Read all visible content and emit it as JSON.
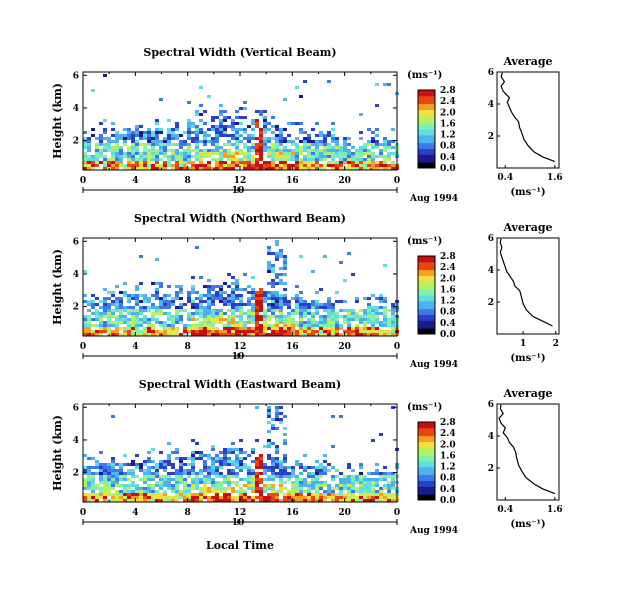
{
  "figure": {
    "date_label": "Aug 1994",
    "common_xlabel": "Local Time",
    "colorbar_unit": "(ms⁻¹)",
    "avg_title": "Average",
    "avg_xlabel": "(ms⁻¹)"
  },
  "colors": {
    "colormap": [
      "#000000",
      "#1a1a8f",
      "#2b3fc8",
      "#3d7ae8",
      "#4fb1f0",
      "#5fdde0",
      "#7ef0b0",
      "#b8f060",
      "#f0e040",
      "#f5a020",
      "#e84810",
      "#c81010"
    ]
  },
  "chart_data": [
    {
      "type": "heatmap",
      "title": "Spectral Width (Vertical Beam)",
      "xlabel": "",
      "ylabel": "Height (km)",
      "x_ticks": [
        "0",
        "4",
        "8",
        "12",
        "16",
        "20",
        "0"
      ],
      "x_range": [
        0,
        24
      ],
      "y_ticks": [
        "2",
        "4",
        "6"
      ],
      "y_range": [
        0.2,
        6.2
      ],
      "date_tick": "10",
      "colorbar": {
        "unit": "(ms⁻¹)",
        "ticks": [
          "0.0",
          "0.4",
          "0.8",
          "1.2",
          "1.6",
          "2.0",
          "2.4",
          "2.8"
        ],
        "range": [
          0,
          2.8
        ]
      },
      "profile": {
        "title": "Average",
        "xlabel": "(ms⁻¹)",
        "x_ticks": [
          "0.4",
          "1.6"
        ],
        "x_range": [
          0.2,
          1.7
        ],
        "y_ticks": [
          "2",
          "4",
          "6"
        ],
        "y_range": [
          0,
          6
        ],
        "points": [
          [
            1.6,
            0.4
          ],
          [
            1.3,
            0.7
          ],
          [
            1.1,
            1.0
          ],
          [
            0.95,
            1.4
          ],
          [
            0.85,
            1.8
          ],
          [
            0.8,
            2.2
          ],
          [
            0.75,
            2.5
          ],
          [
            0.72,
            2.9
          ],
          [
            0.62,
            3.2
          ],
          [
            0.55,
            3.5
          ],
          [
            0.5,
            3.8
          ],
          [
            0.45,
            4.1
          ],
          [
            0.5,
            4.4
          ],
          [
            0.42,
            4.6
          ],
          [
            0.35,
            4.8
          ],
          [
            0.3,
            5.1
          ],
          [
            0.38,
            5.4
          ],
          [
            0.3,
            5.7
          ],
          [
            0.33,
            5.95
          ]
        ]
      }
    },
    {
      "type": "heatmap",
      "title": "Spectral Width (Northward Beam)",
      "xlabel": "",
      "ylabel": "Height (km)",
      "x_ticks": [
        "0",
        "4",
        "8",
        "12",
        "16",
        "20",
        "0"
      ],
      "x_range": [
        0,
        24
      ],
      "y_ticks": [
        "2",
        "4",
        "6"
      ],
      "y_range": [
        0.2,
        6.2
      ],
      "date_tick": "10",
      "colorbar": {
        "unit": "(ms⁻¹)",
        "ticks": [
          "0.0",
          "0.4",
          "0.8",
          "1.2",
          "1.6",
          "2.0",
          "2.4",
          "2.8"
        ],
        "range": [
          0,
          2.8
        ]
      },
      "profile": {
        "title": "Average",
        "xlabel": "(ms⁻¹)",
        "x_ticks": [
          "1",
          "2"
        ],
        "x_range": [
          0.2,
          2.1
        ],
        "y_ticks": [
          "2",
          "4",
          "6"
        ],
        "y_range": [
          0,
          6
        ],
        "points": [
          [
            1.9,
            0.5
          ],
          [
            1.6,
            0.8
          ],
          [
            1.3,
            1.1
          ],
          [
            1.1,
            1.5
          ],
          [
            1.0,
            1.9
          ],
          [
            0.95,
            2.3
          ],
          [
            0.9,
            2.7
          ],
          [
            0.75,
            3.0
          ],
          [
            0.7,
            3.3
          ],
          [
            0.6,
            3.6
          ],
          [
            0.5,
            3.9
          ],
          [
            0.45,
            4.2
          ],
          [
            0.4,
            4.5
          ],
          [
            0.35,
            4.8
          ],
          [
            0.3,
            5.1
          ],
          [
            0.35,
            5.4
          ],
          [
            0.3,
            5.7
          ],
          [
            0.32,
            5.95
          ]
        ]
      }
    },
    {
      "type": "heatmap",
      "title": "Spectral Width (Eastward Beam)",
      "xlabel": "Local Time",
      "ylabel": "Height (km)",
      "x_ticks": [
        "0",
        "4",
        "8",
        "12",
        "16",
        "20",
        "0"
      ],
      "x_range": [
        0,
        24
      ],
      "y_ticks": [
        "2",
        "4",
        "6"
      ],
      "y_range": [
        0.2,
        6.2
      ],
      "date_tick": "10",
      "colorbar": {
        "unit": "(ms⁻¹)",
        "ticks": [
          "0.0",
          "0.4",
          "0.8",
          "1.2",
          "1.6",
          "2.0",
          "2.4",
          "2.8"
        ],
        "range": [
          0,
          2.8
        ]
      },
      "profile": {
        "title": "Average",
        "xlabel": "(ms⁻¹)",
        "x_ticks": [
          "0.4",
          "1.6"
        ],
        "x_range": [
          0.2,
          1.7
        ],
        "y_ticks": [
          "2",
          "4",
          "6"
        ],
        "y_range": [
          0,
          6
        ],
        "points": [
          [
            1.6,
            0.4
          ],
          [
            1.3,
            0.7
          ],
          [
            1.1,
            1.0
          ],
          [
            0.9,
            1.4
          ],
          [
            0.8,
            1.8
          ],
          [
            0.72,
            2.2
          ],
          [
            0.68,
            2.6
          ],
          [
            0.65,
            3.0
          ],
          [
            0.6,
            3.3
          ],
          [
            0.5,
            3.6
          ],
          [
            0.45,
            3.9
          ],
          [
            0.35,
            4.2
          ],
          [
            0.4,
            4.5
          ],
          [
            0.3,
            4.8
          ],
          [
            0.25,
            5.1
          ],
          [
            0.35,
            5.4
          ],
          [
            0.28,
            5.7
          ],
          [
            0.3,
            5.95
          ]
        ]
      }
    }
  ]
}
